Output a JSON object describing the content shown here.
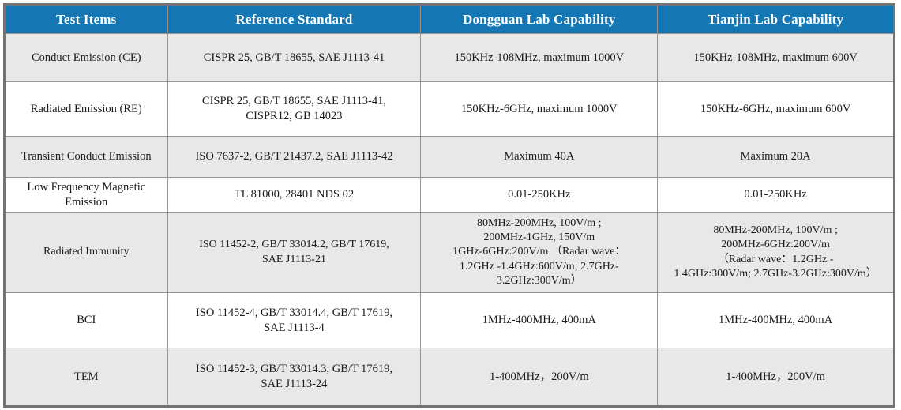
{
  "colors": {
    "header_background": "#1476b3",
    "header_text": "#ffffff",
    "shaded_row_background": "#e8e8e8",
    "plain_row_background": "#ffffff",
    "grid_line": "#959595",
    "outer_border": "#737373",
    "body_text": "#1b1b1b"
  },
  "table": {
    "headers": [
      "Test Items",
      "Reference Standard",
      "Dongguan Lab Capability",
      "Tianjin Lab Capability"
    ],
    "rows": [
      {
        "test_item": "Conduct Emission (CE)",
        "reference_standard": "CISPR 25, GB/T 18655, SAE J1113-41",
        "dongguan": "150KHz-108MHz, maximum 1000V",
        "tianjin": "150KHz-108MHz, maximum 600V"
      },
      {
        "test_item": "Radiated Emission (RE)",
        "reference_standard": "CISPR 25, GB/T 18655, SAE J1113-41,\nCISPR12, GB 14023",
        "dongguan": "150KHz-6GHz, maximum 1000V",
        "tianjin": "150KHz-6GHz, maximum 600V"
      },
      {
        "test_item": "Transient Conduct Emission",
        "reference_standard": "ISO 7637-2, GB/T 21437.2, SAE J1113-42",
        "dongguan": "Maximum 40A",
        "tianjin": "Maximum 20A"
      },
      {
        "test_item": "Low Frequency Magnetic\nEmission",
        "reference_standard": "TL 81000, 28401 NDS 02",
        "dongguan": "0.01-250KHz",
        "tianjin": "0.01-250KHz"
      },
      {
        "test_item": "Radiated Immunity",
        "reference_standard": "ISO 11452-2, GB/T 33014.2, GB/T 17619,\nSAE J1113-21",
        "dongguan": "80MHz-200MHz, 100V/m ;\n200MHz-1GHz, 150V/m\n1GHz-6GHz:200V/m （Radar wave：\n1.2GHz -1.4GHz:600V/m; 2.7GHz-\n3.2GHz:300V/m）",
        "tianjin": "80MHz-200MHz, 100V/m ;\n200MHz-6GHz:200V/m\n（Radar wave：1.2GHz -\n1.4GHz:300V/m; 2.7GHz-3.2GHz:300V/m）"
      },
      {
        "test_item": "BCI",
        "reference_standard": "ISO 11452-4, GB/T 33014.4, GB/T 17619,\nSAE J1113-4",
        "dongguan": "1MHz-400MHz, 400mA",
        "tianjin": "1MHz-400MHz, 400mA"
      },
      {
        "test_item": "TEM",
        "reference_standard": "ISO 11452-3, GB/T 33014.3, GB/T 17619,\nSAE J1113-24",
        "dongguan": "1-400MHz，200V/m",
        "tianjin": "1-400MHz，200V/m"
      }
    ]
  }
}
